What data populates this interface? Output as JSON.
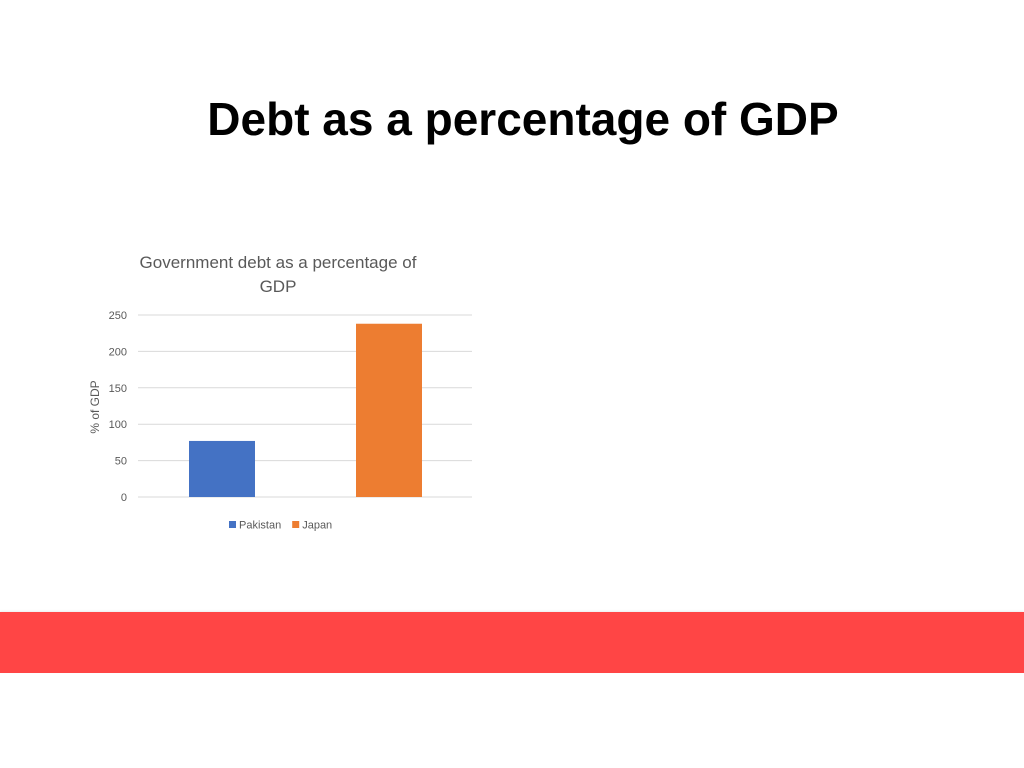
{
  "slide": {
    "title": "Debt as a percentage of GDP"
  },
  "colors": {
    "footer_band": "#ff4545",
    "gridline": "#d9d9d9",
    "text_gray": "#595959"
  },
  "chart_data": {
    "type": "bar",
    "title_lines": [
      "Government debt as a percentage of",
      "GDP"
    ],
    "ylabel": "% of GDP",
    "xlabel": "",
    "ylim": [
      0,
      250
    ],
    "yticks": [
      0,
      50,
      100,
      150,
      200,
      250
    ],
    "grid": true,
    "legend_position": "bottom",
    "series": [
      {
        "name": "Pakistan",
        "value": 77,
        "color": "#4472c4"
      },
      {
        "name": "Japan",
        "value": 238,
        "color": "#ed7d31"
      }
    ]
  }
}
